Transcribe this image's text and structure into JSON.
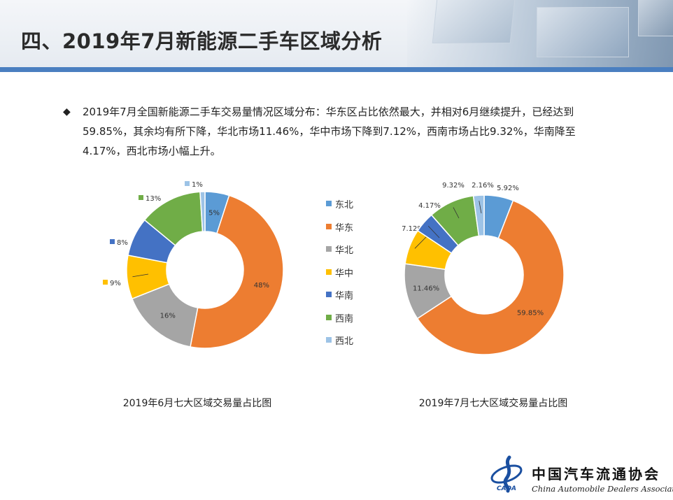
{
  "slide": {
    "title": "四、2019年7月新能源二手车区域分析",
    "bullet_symbol": "◆",
    "bullet_text": "2019年7月全国新能源二手车交易量情况区域分布：华东区占比依然最大，并相对6月继续提升，已经达到59.85%，其余均有所下降，华北市场11.46%，华中市场下降到7.12%，西南市场占比9.32%，华南降至4.17%，西北市场小幅上升。"
  },
  "legend": {
    "items": [
      {
        "label": "东北",
        "color": "#5b9bd5"
      },
      {
        "label": "华东",
        "color": "#ed7d31"
      },
      {
        "label": "华北",
        "color": "#a5a5a5"
      },
      {
        "label": "华中",
        "color": "#ffc000"
      },
      {
        "label": "华南",
        "color": "#4472c4"
      },
      {
        "label": "西南",
        "color": "#70ad47"
      },
      {
        "label": "西北",
        "color": "#9dc3e6"
      }
    ]
  },
  "chart_data": [
    {
      "type": "pie",
      "title": "2019年6月七大区域交易量占比图",
      "categories": [
        "东北",
        "华东",
        "华北",
        "华中",
        "华南",
        "西南",
        "西北"
      ],
      "values": [
        5,
        48,
        16,
        9,
        8,
        13,
        1
      ],
      "labels": [
        "5%",
        "48%",
        "16%",
        "9%",
        "8%",
        "13%",
        "1%"
      ],
      "donut": true,
      "legend_position": "right"
    },
    {
      "type": "pie",
      "title": "2019年7月七大区域交易量占比图",
      "categories": [
        "东北",
        "华东",
        "华北",
        "华中",
        "华南",
        "西南",
        "西北"
      ],
      "values": [
        5.92,
        59.85,
        11.46,
        7.12,
        4.17,
        9.32,
        2.16
      ],
      "labels": [
        "5.92%",
        "59.85%",
        "11.46%",
        "7.12%",
        "4.17%",
        "9.32%",
        "2.16%"
      ],
      "donut": true,
      "legend_position": "left"
    }
  ],
  "logo": {
    "name_cn": "中国汽车流通协会",
    "name_en": "China Automobile Dealers Association",
    "abbr": "CADA"
  }
}
